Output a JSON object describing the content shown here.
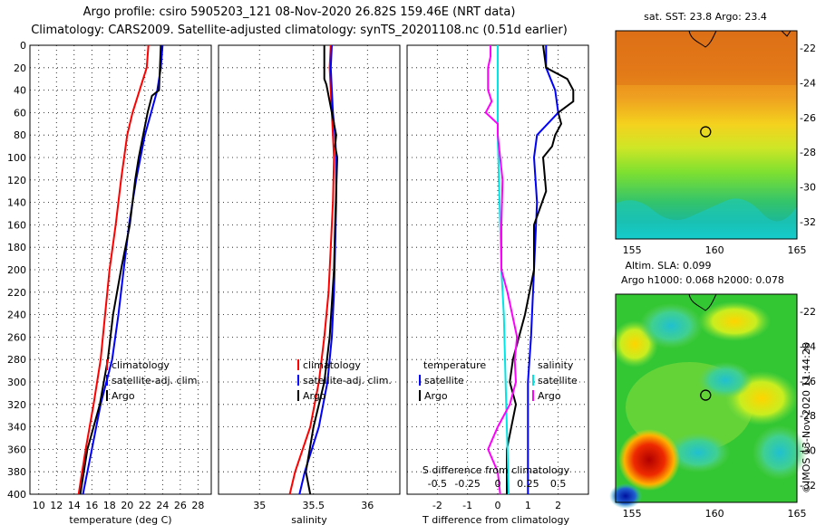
{
  "header": {
    "line1": "Argo profile: csiro 5905203_121 08-Nov-2020 26.82S 159.46E (NRT data)",
    "line2": "Climatology: CARS2009. Satellite-adjusted climatology: synTS_20201108.nc (0.51d earlier)"
  },
  "footer": {
    "imos_stamp": "©IMOS 13-Nov-2020 11:44:28"
  },
  "colors": {
    "climatology": "#ff0000",
    "satellite": "#0000ff",
    "argo": "#000000",
    "salinity_sat": "#00e5e5",
    "salinity_argo": "#ff00ff"
  },
  "chart_data": [
    {
      "type": "line",
      "name": "temperature",
      "xlabel": "temperature (deg C)",
      "ylabel": "",
      "xlim": [
        9,
        29.5
      ],
      "ylim": [
        400,
        0
      ],
      "xticks": [
        "10",
        "12",
        "14",
        "16",
        "18",
        "20",
        "22",
        "24",
        "26",
        "28"
      ],
      "xtick_values": [
        10,
        12,
        14,
        16,
        18,
        20,
        22,
        24,
        26,
        28
      ],
      "yticks": [
        "0",
        "20",
        "40",
        "60",
        "80",
        "100",
        "120",
        "140",
        "160",
        "180",
        "200",
        "220",
        "240",
        "260",
        "280",
        "300",
        "320",
        "340",
        "360",
        "380",
        "400"
      ],
      "ytick_values": [
        0,
        20,
        40,
        60,
        80,
        100,
        120,
        140,
        160,
        180,
        200,
        220,
        240,
        260,
        280,
        300,
        320,
        340,
        360,
        380,
        400
      ],
      "legend": [
        "climatology",
        "satellite-adj. clim.",
        "Argo"
      ],
      "series": [
        {
          "name": "climatology",
          "color": "#ff0000",
          "depth": [
            0,
            20,
            40,
            60,
            80,
            120,
            160,
            200,
            240,
            280,
            320,
            360,
            400
          ],
          "values": [
            22.4,
            22.2,
            21.4,
            20.6,
            20.0,
            19.3,
            18.7,
            18.0,
            17.5,
            17.0,
            16.2,
            15.3,
            14.5
          ]
        },
        {
          "name": "satellite-adj. clim.",
          "color": "#0000ff",
          "depth": [
            0,
            20,
            40,
            60,
            80,
            120,
            160,
            200,
            240,
            280,
            320,
            360,
            400
          ],
          "values": [
            24.0,
            23.8,
            23.4,
            22.7,
            22.0,
            21.0,
            20.2,
            19.6,
            19.0,
            18.3,
            17.0,
            16.0,
            15.0
          ]
        },
        {
          "name": "Argo",
          "color": "#000000",
          "depth": [
            0,
            20,
            40,
            45,
            60,
            80,
            100,
            120,
            160,
            200,
            240,
            280,
            320,
            360,
            400
          ],
          "values": [
            23.8,
            23.7,
            23.6,
            22.8,
            22.3,
            21.8,
            21.3,
            20.9,
            20.3,
            19.3,
            18.4,
            17.8,
            16.9,
            15.5,
            14.7
          ]
        }
      ]
    },
    {
      "type": "line",
      "name": "salinity",
      "xlabel": "salinity",
      "ylabel": "",
      "xlim": [
        34.62,
        36.3
      ],
      "ylim": [
        400,
        0
      ],
      "xticks": [
        "35",
        "35.5",
        "36"
      ],
      "xtick_values": [
        35,
        35.5,
        36
      ],
      "legend": [
        "climatology",
        "satellite-adj. clim.",
        "Argo"
      ],
      "series": [
        {
          "name": "climatology",
          "color": "#ff0000",
          "depth": [
            0,
            20,
            40,
            60,
            80,
            100,
            140,
            180,
            220,
            260,
            300,
            340,
            380,
            400
          ],
          "values": [
            35.66,
            35.65,
            35.66,
            35.67,
            35.68,
            35.69,
            35.68,
            35.66,
            35.64,
            35.6,
            35.55,
            35.47,
            35.33,
            35.28
          ]
        },
        {
          "name": "satellite-adj. clim.",
          "color": "#0000ff",
          "depth": [
            0,
            20,
            40,
            60,
            80,
            100,
            140,
            180,
            220,
            260,
            300,
            340,
            380,
            400
          ],
          "values": [
            35.67,
            35.66,
            35.67,
            35.68,
            35.7,
            35.71,
            35.71,
            35.7,
            35.69,
            35.67,
            35.63,
            35.55,
            35.42,
            35.37
          ]
        },
        {
          "name": "Argo",
          "color": "#000000",
          "depth": [
            0,
            30,
            35,
            50,
            70,
            80,
            90,
            100,
            130,
            160,
            200,
            230,
            260,
            300,
            340,
            380,
            400
          ],
          "values": [
            35.6,
            35.6,
            35.62,
            35.65,
            35.69,
            35.71,
            35.7,
            35.72,
            35.71,
            35.7,
            35.69,
            35.67,
            35.65,
            35.6,
            35.5,
            35.43,
            35.47
          ]
        }
      ]
    },
    {
      "type": "line",
      "name": "difference",
      "xlabel": "T difference from climatology",
      "ylabel": "",
      "xlim": [
        -3,
        3
      ],
      "ylim": [
        400,
        0
      ],
      "xticks": [
        "-2",
        "-1",
        "0",
        "1",
        "2"
      ],
      "xtick_values": [
        -2,
        -1,
        0,
        1,
        2
      ],
      "secondary_axis_label": "S difference from climatology",
      "secondary_xticks": [
        "-0.5",
        "-0.25",
        "0",
        "0.25",
        "0.5"
      ],
      "secondary_xtick_values": [
        -0.5,
        -0.25,
        0,
        0.25,
        0.5
      ],
      "legend_temperature": {
        "title": "temperature",
        "items": [
          "satellite",
          "Argo"
        ]
      },
      "legend_salinity": {
        "title": "salinity",
        "items": [
          "satellite",
          "Argo"
        ]
      },
      "series": [
        {
          "name": "T satellite",
          "color": "#0000ff",
          "depth": [
            0,
            20,
            40,
            60,
            80,
            100,
            140,
            200,
            260,
            300,
            340,
            380,
            400
          ],
          "values": [
            1.6,
            1.6,
            1.9,
            2.0,
            1.3,
            1.2,
            1.3,
            1.2,
            1.1,
            1.0,
            1.0,
            1.0,
            1.0
          ]
        },
        {
          "name": "T Argo",
          "color": "#000000",
          "depth": [
            0,
            20,
            30,
            40,
            50,
            60,
            70,
            80,
            90,
            100,
            130,
            160,
            200,
            240,
            280,
            300,
            320,
            360,
            400
          ],
          "values": [
            1.5,
            1.6,
            2.3,
            2.5,
            2.5,
            2.0,
            2.1,
            1.9,
            1.8,
            1.5,
            1.6,
            1.2,
            1.2,
            0.9,
            0.5,
            0.4,
            0.6,
            0.3,
            0.3
          ]
        },
        {
          "name": "S satellite",
          "color": "#00e5e5",
          "depth": [
            0,
            40,
            80,
            120,
            160,
            200,
            240,
            280,
            320,
            360,
            400
          ],
          "values": [
            0,
            0,
            0,
            0.01,
            0.02,
            0.03,
            0.05,
            0.06,
            0.07,
            0.08,
            0.09
          ]
        },
        {
          "name": "S Argo",
          "color": "#ff00ff",
          "depth": [
            0,
            10,
            20,
            40,
            50,
            60,
            70,
            80,
            120,
            160,
            200,
            220,
            240,
            260,
            280,
            300,
            320,
            340,
            360,
            380,
            400
          ],
          "values": [
            -0.06,
            -0.06,
            -0.08,
            -0.08,
            -0.05,
            -0.1,
            0.0,
            0.0,
            0.04,
            0.03,
            0.03,
            0.08,
            0.12,
            0.16,
            0.14,
            0.15,
            0.1,
            0.0,
            -0.08,
            0.0,
            0.02
          ]
        }
      ]
    },
    {
      "type": "heatmap",
      "name": "sst_map",
      "title": "sat. SST: 23.8 Argo: 23.4",
      "xticks": [
        "155",
        "160",
        "165"
      ],
      "yticks": [
        "-22",
        "-24",
        "-26",
        "-28",
        "-30",
        "-32"
      ],
      "xlim": [
        154,
        165
      ],
      "ylim": [
        -33,
        -21
      ],
      "argo_position": [
        159.46,
        -26.82
      ]
    },
    {
      "type": "heatmap",
      "name": "sla_map",
      "title": "Altim. SLA: 0.099",
      "subtitle": "Argo h1000: 0.068 h2000: 0.078",
      "xticks": [
        "155",
        "160",
        "165"
      ],
      "yticks": [
        "-22",
        "-24",
        "-26",
        "-28",
        "-30",
        "-32"
      ],
      "xlim": [
        154,
        165
      ],
      "ylim": [
        -33,
        -21
      ],
      "argo_position": [
        159.46,
        -26.82
      ]
    }
  ]
}
